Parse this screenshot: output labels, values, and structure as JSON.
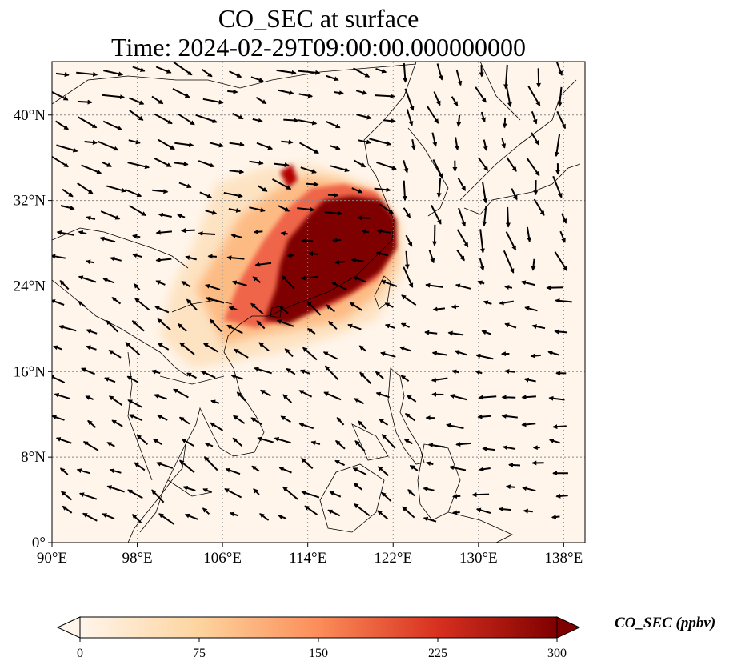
{
  "title": {
    "line1": "CO_SEC at surface",
    "line2": "Time: 2024-02-29T09:00:00.000000000"
  },
  "map": {
    "projection": "PlateCarree",
    "lon_range": [
      90,
      140
    ],
    "lat_range": [
      0,
      45
    ],
    "gridlines": "dotted",
    "colormap": "OrRd",
    "background_color": "#fff5eb",
    "lon_ticks": [
      {
        "value": 90,
        "label": "90°E"
      },
      {
        "value": 98,
        "label": "98°E"
      },
      {
        "value": 106,
        "label": "106°E"
      },
      {
        "value": 114,
        "label": "114°E"
      },
      {
        "value": 122,
        "label": "122°E"
      },
      {
        "value": 130,
        "label": "130°E"
      },
      {
        "value": 138,
        "label": "138°E"
      }
    ],
    "lat_ticks": [
      {
        "value": 0,
        "label": "0°"
      },
      {
        "value": 8,
        "label": "8°N"
      },
      {
        "value": 16,
        "label": "16°N"
      },
      {
        "value": 24,
        "label": "24°N"
      },
      {
        "value": 32,
        "label": "32°N"
      },
      {
        "value": 40,
        "label": "40°N"
      }
    ]
  },
  "colorbar": {
    "label": "CO_SEC (ppbv)",
    "min": 0,
    "max": 300,
    "extend": "both",
    "ticks": [
      "0",
      "75",
      "150",
      "225",
      "300"
    ],
    "colors": [
      "#fff5eb",
      "#fdd49e",
      "#fc8d59",
      "#d7301f",
      "#7f0000"
    ]
  }
}
